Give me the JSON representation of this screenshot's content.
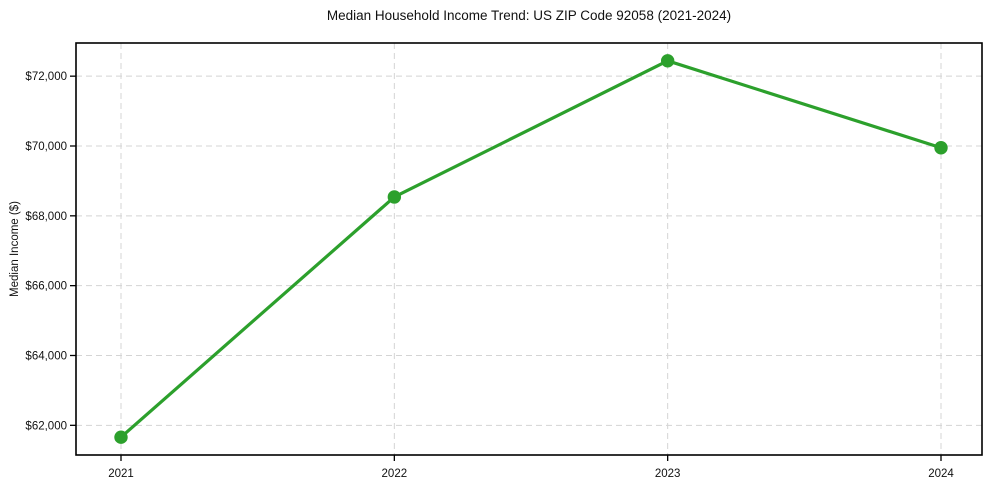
{
  "chart_data": {
    "type": "line",
    "title": "Median Household Income Trend: US ZIP Code 92058 (2021-2024)",
    "xlabel": "",
    "ylabel": "Median Income ($)",
    "x": [
      2021,
      2022,
      2023,
      2024
    ],
    "x_labels": [
      "2021",
      "2022",
      "2023",
      "2024"
    ],
    "series": [
      {
        "name": "Median Household Income",
        "values": [
          61660,
          68540,
          72440,
          69950
        ]
      }
    ],
    "ylim": [
      61150,
      72950
    ],
    "yticks": [
      62000,
      64000,
      66000,
      68000,
      70000,
      72000
    ],
    "ytick_labels": [
      "$62,000",
      "$64,000",
      "$66,000",
      "$68,000",
      "$70,000",
      "$72,000"
    ],
    "grid": true,
    "grid_style": "dashed",
    "legend": false,
    "legend_position": "none",
    "line_color": "#2ca02c",
    "marker": "circle",
    "background_color": "#ffffff",
    "grid_color": "#d4d4d4",
    "spine_color": "#000000"
  }
}
